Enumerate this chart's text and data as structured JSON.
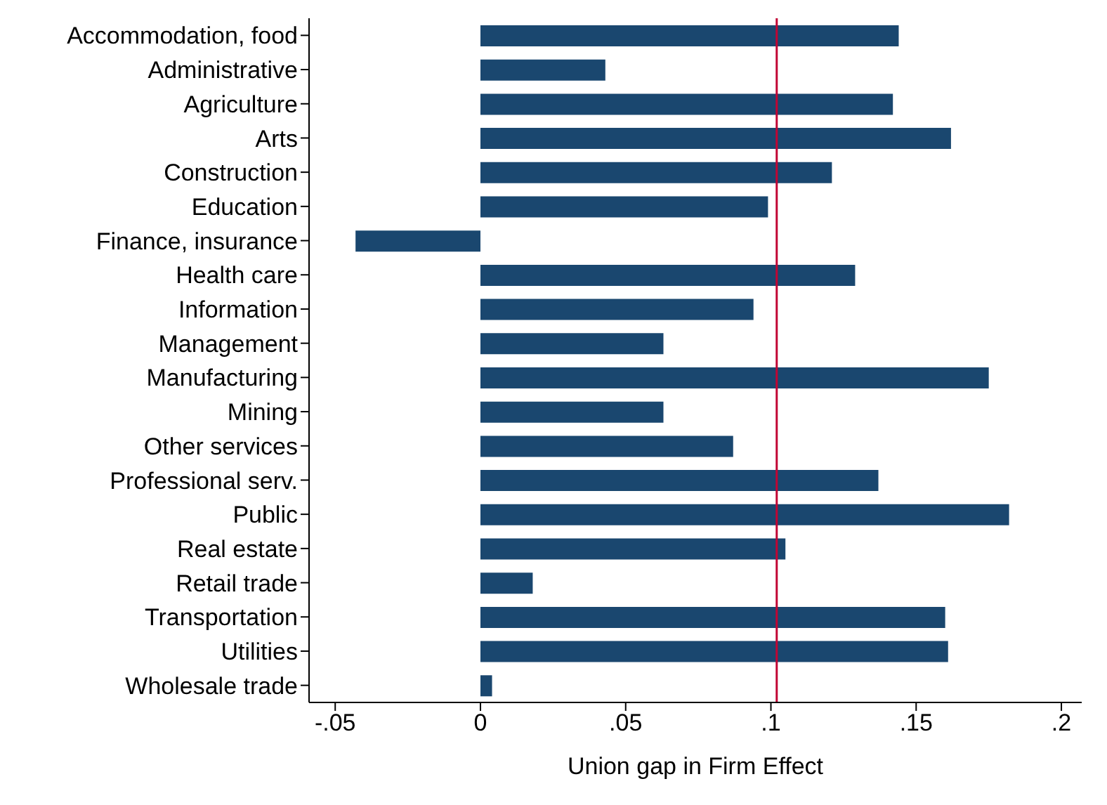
{
  "chart_data": {
    "type": "bar",
    "orientation": "horizontal",
    "xlabel": "Union gap in Firm Effect",
    "categories": [
      "Accommodation, food",
      "Administrative",
      "Agriculture",
      "Arts",
      "Construction",
      "Education",
      "Finance, insurance",
      "Health care",
      "Information",
      "Management",
      "Manufacturing",
      "Mining",
      "Other services",
      "Professional serv.",
      "Public",
      "Real estate",
      "Retail trade",
      "Transportation",
      "Utilities",
      "Wholesale trade"
    ],
    "values": [
      0.144,
      0.043,
      0.142,
      0.162,
      0.121,
      0.099,
      -0.043,
      0.129,
      0.094,
      0.063,
      0.175,
      0.063,
      0.087,
      0.137,
      0.182,
      0.105,
      0.018,
      0.16,
      0.161,
      0.004
    ],
    "color": "#1a476f",
    "xlim": [
      -0.059,
      0.207
    ],
    "xticks": [
      {
        "value": -0.05,
        "label": "-.05"
      },
      0,
      {
        "value": 0.05,
        "label": ".05"
      },
      {
        "value": 0.1,
        "label": ".1"
      },
      {
        "value": 0.15,
        "label": ".15"
      },
      {
        "value": 0.2,
        "label": ".2"
      }
    ],
    "ref_lines": [
      {
        "axis": "x",
        "value": 0.102,
        "color": "#c10534"
      }
    ],
    "grid": false
  }
}
